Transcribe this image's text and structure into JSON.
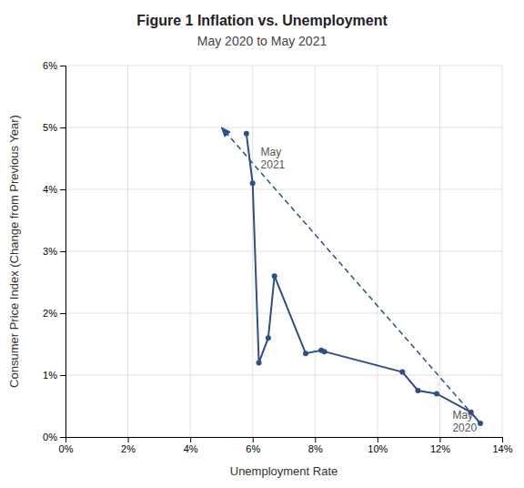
{
  "chart_data": {
    "type": "line",
    "title": "Figure 1 Inflation vs. Unemployment",
    "subtitle": "May 2020 to May 2021",
    "xlabel": "Unemployment Rate",
    "ylabel": "Consumer Price Index (Change from Previous Year)",
    "xlim": [
      0.0,
      0.14
    ],
    "ylim": [
      0.0,
      0.06
    ],
    "xticks": [
      {
        "value": 0.0,
        "label": "0%"
      },
      {
        "value": 0.02,
        "label": "2%"
      },
      {
        "value": 0.04,
        "label": "4%"
      },
      {
        "value": 0.06,
        "label": "6%"
      },
      {
        "value": 0.08,
        "label": "8%"
      },
      {
        "value": 0.1,
        "label": "10%"
      },
      {
        "value": 0.12,
        "label": "12%"
      },
      {
        "value": 0.14,
        "label": "14%"
      }
    ],
    "yticks": [
      {
        "value": 0.0,
        "label": "0%"
      },
      {
        "value": 0.01,
        "label": "1%"
      },
      {
        "value": 0.02,
        "label": "2%"
      },
      {
        "value": 0.03,
        "label": "3%"
      },
      {
        "value": 0.04,
        "label": "4%"
      },
      {
        "value": 0.05,
        "label": "5%"
      },
      {
        "value": 0.06,
        "label": "6%"
      }
    ],
    "grid": true,
    "series": [
      {
        "color": "#2e4f8a",
        "marker": "circle",
        "line_style": "solid",
        "x": [
          0.133,
          0.13,
          0.119,
          0.113,
          0.108,
          0.083,
          0.082,
          0.077,
          0.067,
          0.065,
          0.062,
          0.06,
          0.058
        ],
        "values": [
          0.0022,
          0.004,
          0.007,
          0.0075,
          0.0105,
          0.0138,
          0.014,
          0.0135,
          0.026,
          0.016,
          0.012,
          0.041,
          0.049
        ]
      },
      {
        "color": "#2e4f8a",
        "marker": "arrow",
        "line_style": "dashed",
        "x": [
          0.133,
          0.05
        ],
        "values": [
          0.0022,
          0.05
        ]
      }
    ],
    "annotations": [
      {
        "text": "May\n2021",
        "x": 0.062,
        "y": 0.047
      },
      {
        "text": "May\n2020",
        "x": 0.1235,
        "y": 0.0045
      }
    ]
  }
}
